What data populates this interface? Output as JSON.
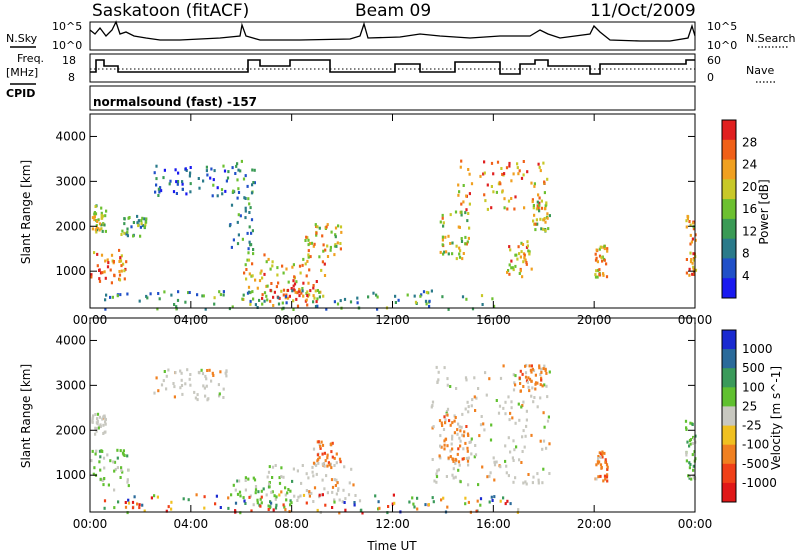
{
  "header": {
    "station": "Saskatoon (fitACF)",
    "beam": "Beam 09",
    "date": "11/Oct/2009"
  },
  "mini_panels": {
    "nsky_label": "N.Sky",
    "nsky_ticks": [
      "10^5",
      "10^0"
    ],
    "nsearch_label": "N.Search",
    "nsearch_ticks": [
      "10^5",
      "10^0"
    ],
    "freq_label_1": "Freq.",
    "freq_label_2": "[MHz]",
    "freq_ticks": [
      "18",
      "8"
    ],
    "nave_label": "Nave",
    "nave_ticks": [
      "60",
      "0"
    ],
    "cpid_label": "CPID",
    "cpid_text": "normalsound (fast) -157"
  },
  "chart_data": [
    {
      "type": "heatmap",
      "name": "power-panel",
      "ylabel": "Slant Range [km]",
      "xlabel": "",
      "y_ticks": [
        "1000",
        "2000",
        "3000",
        "4000"
      ],
      "x_ticks": [
        "00:00",
        "04:00",
        "08:00",
        "12:00",
        "16:00",
        "20:00",
        "00:00"
      ],
      "xlim_hours": [
        0,
        24
      ],
      "ylim_km": [
        180,
        4500
      ],
      "colorbar": {
        "label": "Power [dB]",
        "ticks": [
          "4",
          "8",
          "12",
          "16",
          "20",
          "24",
          "28"
        ],
        "range": [
          0,
          30
        ],
        "colors": [
          "#1a1af0",
          "#2050c8",
          "#2a7a8a",
          "#3a9a55",
          "#6cc030",
          "#c8c828",
          "#f0a020",
          "#f06018",
          "#e02020"
        ]
      },
      "echo_regions": [
        {
          "t0": 0.0,
          "t1": 1.4,
          "r0": 700,
          "r1": 1500,
          "level": 0.8
        },
        {
          "t0": 0.0,
          "t1": 0.6,
          "r0": 1900,
          "r1": 2500,
          "level": 0.55
        },
        {
          "t0": 1.2,
          "t1": 2.2,
          "r0": 1800,
          "r1": 2300,
          "level": 0.4
        },
        {
          "t0": 2.5,
          "t1": 5.5,
          "r0": 2700,
          "r1": 3400,
          "level": 0.25
        },
        {
          "t0": 5.5,
          "t1": 6.5,
          "r0": 1400,
          "r1": 3500,
          "level": 0.3
        },
        {
          "t0": 6.0,
          "t1": 9.5,
          "r0": 400,
          "r1": 1400,
          "level": 0.7
        },
        {
          "t0": 7.0,
          "t1": 9.0,
          "r0": 250,
          "r1": 800,
          "level": 0.85
        },
        {
          "t0": 8.5,
          "t1": 10.0,
          "r0": 1300,
          "r1": 2100,
          "level": 0.65
        },
        {
          "t0": 0.5,
          "t1": 16.0,
          "r0": 180,
          "r1": 600,
          "level": 0.35
        },
        {
          "t0": 13.8,
          "t1": 15.0,
          "r0": 1300,
          "r1": 2400,
          "level": 0.6
        },
        {
          "t0": 14.5,
          "t1": 18.2,
          "r0": 2400,
          "r1": 3500,
          "level": 0.75
        },
        {
          "t0": 16.5,
          "t1": 17.5,
          "r0": 900,
          "r1": 1700,
          "level": 0.7
        },
        {
          "t0": 17.5,
          "t1": 18.2,
          "r0": 1900,
          "r1": 2600,
          "level": 0.6
        },
        {
          "t0": 20.0,
          "t1": 20.5,
          "r0": 900,
          "r1": 1600,
          "level": 0.65
        },
        {
          "t0": 23.6,
          "t1": 24.0,
          "r0": 900,
          "r1": 2300,
          "level": 0.75
        }
      ]
    },
    {
      "type": "heatmap",
      "name": "velocity-panel",
      "ylabel": "Slant Range [km]",
      "xlabel": "Time UT",
      "y_ticks": [
        "1000",
        "2000",
        "3000",
        "4000"
      ],
      "x_ticks": [
        "00:00",
        "04:00",
        "08:00",
        "12:00",
        "16:00",
        "20:00",
        "00:00"
      ],
      "xlim_hours": [
        0,
        24
      ],
      "ylim_km": [
        180,
        4500
      ],
      "colorbar": {
        "label": "Velocity [m s^-1]",
        "ticks": [
          "1000",
          "500",
          "100",
          "25",
          "-25",
          "-100",
          "-500",
          "-1000"
        ],
        "colors": [
          "#1a2ad0",
          "#2a6a9a",
          "#3a9a5a",
          "#60c030",
          "#c8c8c0",
          "#f0c020",
          "#f08020",
          "#f04018",
          "#e01818"
        ]
      },
      "echo_regions": [
        {
          "t0": 0.0,
          "t1": 1.5,
          "r0": 700,
          "r1": 1600,
          "kind": "green"
        },
        {
          "t0": 0.0,
          "t1": 0.6,
          "r0": 1900,
          "r1": 2400,
          "kind": "gray"
        },
        {
          "t0": 2.5,
          "t1": 5.5,
          "r0": 2700,
          "r1": 3400,
          "kind": "gray"
        },
        {
          "t0": 5.5,
          "t1": 8.0,
          "r0": 300,
          "r1": 1000,
          "kind": "green"
        },
        {
          "t0": 7.0,
          "t1": 10.5,
          "r0": 400,
          "r1": 1300,
          "kind": "gray"
        },
        {
          "t0": 8.8,
          "t1": 10.0,
          "r0": 1200,
          "r1": 1800,
          "kind": "orange"
        },
        {
          "t0": 0.5,
          "t1": 17.0,
          "r0": 180,
          "r1": 600,
          "kind": "mixed"
        },
        {
          "t0": 13.5,
          "t1": 18.2,
          "r0": 800,
          "r1": 3500,
          "kind": "gray"
        },
        {
          "t0": 17.0,
          "t1": 18.2,
          "r0": 2900,
          "r1": 3500,
          "kind": "orange"
        },
        {
          "t0": 13.8,
          "t1": 15.0,
          "r0": 1300,
          "r1": 2400,
          "kind": "orange"
        },
        {
          "t0": 20.0,
          "t1": 20.5,
          "r0": 900,
          "r1": 1600,
          "kind": "orange"
        },
        {
          "t0": 23.6,
          "t1": 24.0,
          "r0": 900,
          "r1": 2300,
          "kind": "green"
        }
      ]
    }
  ]
}
